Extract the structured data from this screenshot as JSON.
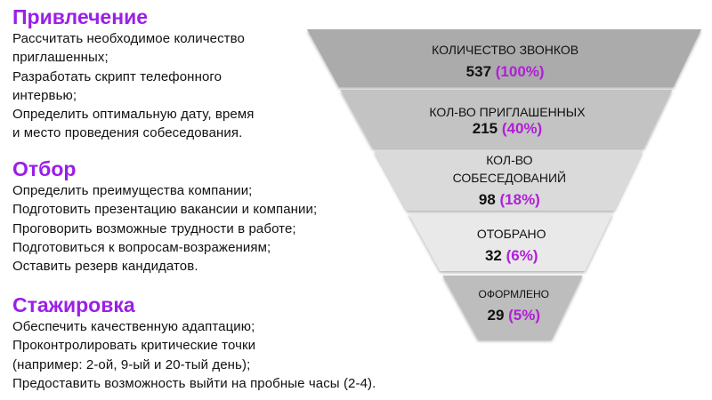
{
  "sections": [
    {
      "title": "Привлечение",
      "items": [
        "Рассчитать необходимое количество",
        "приглашенных;",
        "Разработать скрипт телефонного",
        "интервью;",
        "Определить оптимальную дату, время",
        "и место проведения собеседования."
      ]
    },
    {
      "title": "Отбор",
      "items": [
        "Определить преимущества компании;",
        "Подготовить презентацию вакансии и компании;",
        "Проговорить возможные трудности в работе;",
        "Подготовиться к вопросам-возражениям;",
        "Оставить резерв кандидатов."
      ]
    },
    {
      "title": "Стажировка",
      "items": [
        "Обеспечить качественную адаптацию;",
        "Проконтролировать критические точки",
        "(например: 2-ой, 9-ый и 20-тый день);",
        "Предоставить возможность выйти на пробные часы (2-4)."
      ]
    }
  ],
  "funnel": {
    "stages": [
      {
        "label": [
          "КОЛИЧЕСТВО ЗВОНКОВ"
        ],
        "count": "537",
        "percent": "(100%)"
      },
      {
        "label": [
          "КОЛ-ВО ПРИГЛАШЕННЫХ"
        ],
        "count": "215",
        "percent": "(40%)"
      },
      {
        "label": [
          "КОЛ-ВО",
          "СОБЕСЕДОВАНИЙ"
        ],
        "count": "98",
        "percent": "(18%)"
      },
      {
        "label": [
          "ОТОБРАНО"
        ],
        "count": "32",
        "percent": "(6%)"
      },
      {
        "label": [
          "ОФОРМЛЕНО"
        ],
        "count": "29",
        "percent": "(5%)"
      }
    ]
  },
  "colors": {
    "heading": "#9b1fe8",
    "percent": "#b01fd6",
    "text": "#111111",
    "stage_fills": [
      "#ababab",
      "#c3c3c3",
      "#dadada",
      "#e9e9e9",
      "#bdbdbd"
    ]
  }
}
